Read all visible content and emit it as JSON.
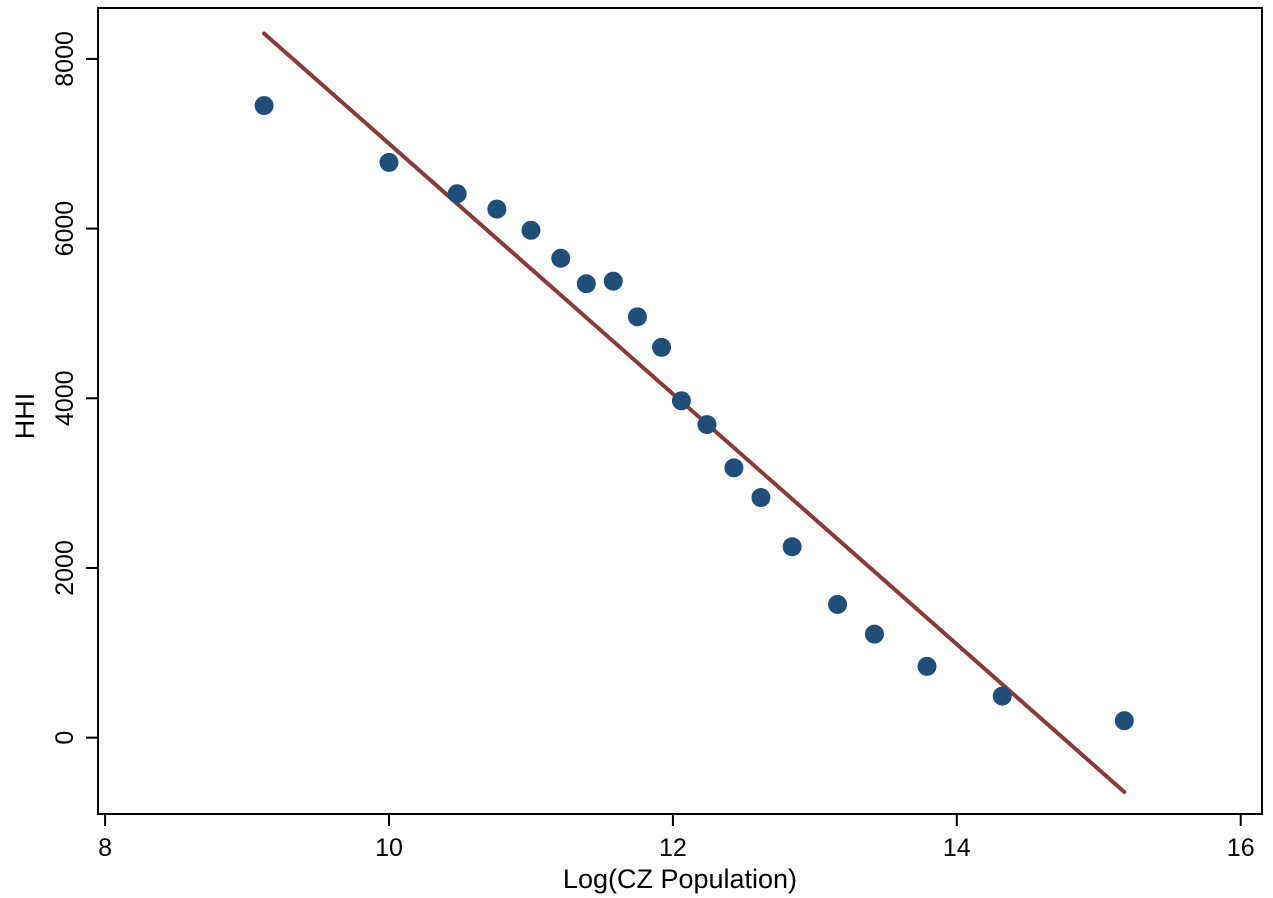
{
  "chart_data": {
    "type": "scatter",
    "title": "",
    "xlabel": "Log(CZ Population)",
    "ylabel": "HHI",
    "xlim": [
      7.95,
      16.15
    ],
    "ylim": [
      -900,
      8600
    ],
    "xticks": [
      8,
      10,
      12,
      14,
      16
    ],
    "yticks": [
      0,
      2000,
      4000,
      6000,
      8000
    ],
    "grid": false,
    "legend": "none",
    "colors": {
      "points": "#1f4e79",
      "fit_line": "#8b3a3a",
      "axes": "#000000"
    },
    "points": [
      {
        "x": 9.12,
        "y": 7450
      },
      {
        "x": 10.0,
        "y": 6780
      },
      {
        "x": 10.48,
        "y": 6410
      },
      {
        "x": 10.76,
        "y": 6230
      },
      {
        "x": 11.0,
        "y": 5980
      },
      {
        "x": 11.21,
        "y": 5650
      },
      {
        "x": 11.39,
        "y": 5350
      },
      {
        "x": 11.58,
        "y": 5380
      },
      {
        "x": 11.75,
        "y": 4960
      },
      {
        "x": 11.92,
        "y": 4600
      },
      {
        "x": 12.06,
        "y": 3970
      },
      {
        "x": 12.24,
        "y": 3690
      },
      {
        "x": 12.43,
        "y": 3180
      },
      {
        "x": 12.62,
        "y": 2830
      },
      {
        "x": 12.84,
        "y": 2250
      },
      {
        "x": 13.16,
        "y": 1570
      },
      {
        "x": 13.42,
        "y": 1220
      },
      {
        "x": 13.79,
        "y": 840
      },
      {
        "x": 14.32,
        "y": 490
      },
      {
        "x": 15.18,
        "y": 200
      }
    ],
    "fit_line": {
      "x": [
        9.12,
        15.18
      ],
      "y": [
        8300,
        -640
      ]
    }
  }
}
